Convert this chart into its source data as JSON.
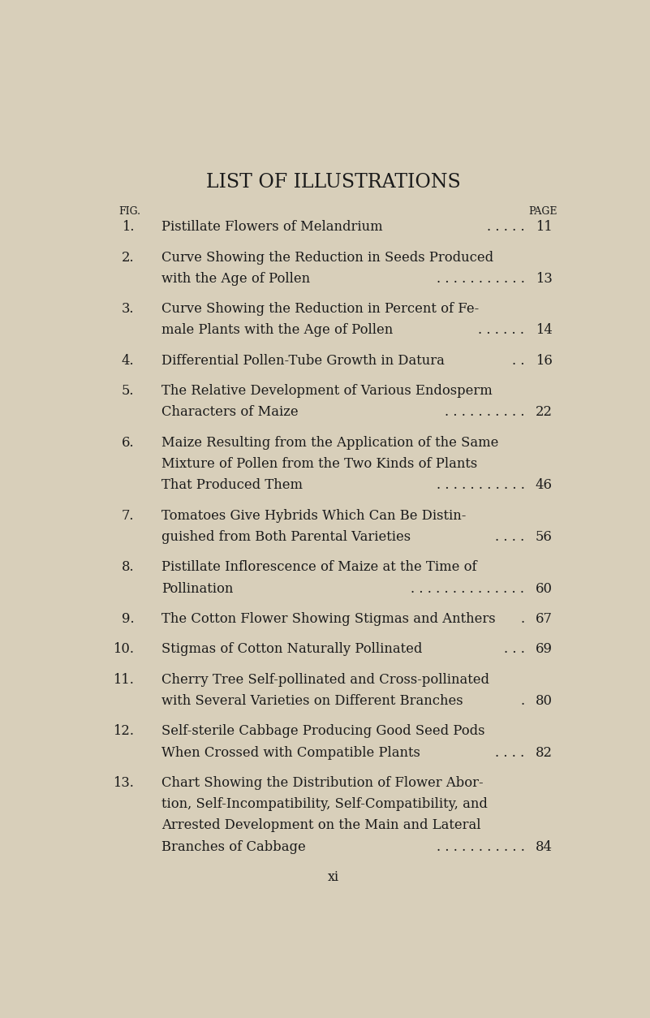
{
  "bg_color": "#d8cfba",
  "text_color": "#1a1a1a",
  "title": "LIST OF ILLUSTRATIONS",
  "header_left": "FIG.",
  "header_right": "PAGE",
  "footer": "xi",
  "entries": [
    {
      "num": "1.",
      "lines": [
        "Pistillate Flowers of Melandrium"
      ],
      "dots": ". . . . .",
      "page": "11"
    },
    {
      "num": "2.",
      "lines": [
        "Curve Showing the Reduction in Seeds Produced",
        "with the Age of Pollen"
      ],
      "dots": ". . . . . . . . . . .",
      "page": "13"
    },
    {
      "num": "3.",
      "lines": [
        "Curve Showing the Reduction in Percent of Fe-",
        "male Plants with the Age of Pollen"
      ],
      "dots": ". . . . . .",
      "page": "14"
    },
    {
      "num": "4.",
      "lines": [
        "Differential Pollen-Tube Growth in Datura"
      ],
      "dots": ". .",
      "page": "16"
    },
    {
      "num": "5.",
      "lines": [
        "The Relative Development of Various Endosperm",
        "Characters of Maize"
      ],
      "dots": ". . . . . . . . . .",
      "page": "22"
    },
    {
      "num": "6.",
      "lines": [
        "Maize Resulting from the Application of the Same",
        "Mixture of Pollen from the Two Kinds of Plants",
        "That Produced Them"
      ],
      "dots": ". . . . . . . . . . .",
      "page": "46"
    },
    {
      "num": "7.",
      "lines": [
        "Tomatoes Give Hybrids Which Can Be Distin-",
        "guished from Both Parental Varieties"
      ],
      "dots": ". . . .",
      "page": "56"
    },
    {
      "num": "8.",
      "lines": [
        "Pistillate Inflorescence of Maize at the Time of",
        "Pollination"
      ],
      "dots": ". . . . . . . . . . . . . .",
      "page": "60"
    },
    {
      "num": "9.",
      "lines": [
        "The Cotton Flower Showing Stigmas and Anthers"
      ],
      "dots": ".",
      "page": "67"
    },
    {
      "num": "10.",
      "lines": [
        "Stigmas of Cotton Naturally Pollinated"
      ],
      "dots": ". . .",
      "page": "69"
    },
    {
      "num": "11.",
      "lines": [
        "Cherry Tree Self-pollinated and Cross-pollinated",
        "with Several Varieties on Different Branches"
      ],
      "dots": ".",
      "page": "80"
    },
    {
      "num": "12.",
      "lines": [
        "Self-sterile Cabbage Producing Good Seed Pods",
        "When Crossed with Compatible Plants"
      ],
      "dots": ". . . .",
      "page": "82"
    },
    {
      "num": "13.",
      "lines": [
        "Chart Showing the Distribution of Flower Abor-",
        "tion, Self-Incompatibility, Self-Compatibility, and",
        "Arrested Development on the Main and Lateral",
        "Branches of Cabbage"
      ],
      "dots": ". . . . . . . . . . .",
      "page": "84"
    }
  ]
}
